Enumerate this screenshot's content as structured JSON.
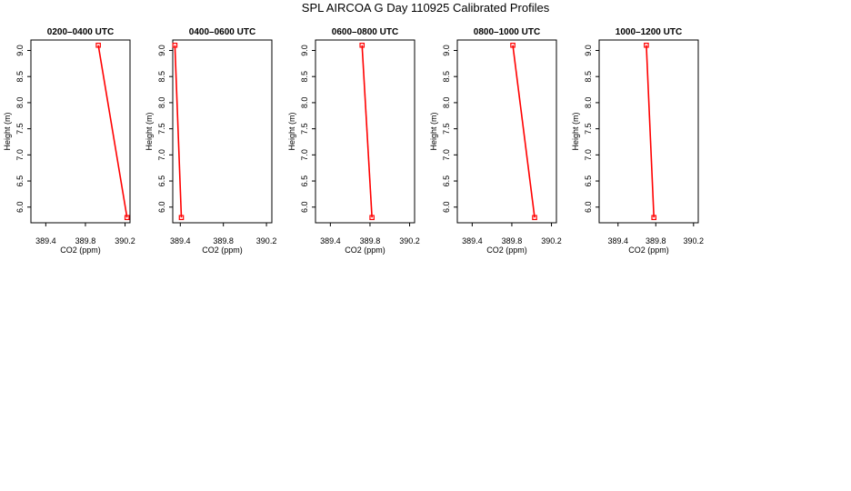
{
  "page": {
    "title": "SPL AIRCOA G  Day 110925  Calibrated Profiles"
  },
  "chart_data": [
    {
      "type": "line",
      "title": "0200–0400 UTC",
      "xlabel": "CO2 (ppm)",
      "ylabel": "Height (m)",
      "xlim": [
        389.25,
        390.25
      ],
      "ylim": [
        5.7,
        9.2
      ],
      "xticks": [
        "389.4",
        "389.8",
        "390.2"
      ],
      "yticks": [
        "6.0",
        "6.5",
        "7.0",
        "7.5",
        "8.0",
        "8.5",
        "9.0"
      ],
      "series": [
        {
          "x": [
            389.93,
            390.22
          ],
          "y": [
            9.1,
            5.8
          ]
        }
      ],
      "color": "#ff0000",
      "grid": false
    },
    {
      "type": "line",
      "title": "0400–0600 UTC",
      "xlabel": "CO2 (ppm)",
      "ylabel": "Height (m)",
      "xlim": [
        389.33,
        390.25
      ],
      "ylim": [
        5.7,
        9.2
      ],
      "xticks": [
        "389.4",
        "389.8",
        "390.2"
      ],
      "yticks": [
        "6.0",
        "6.5",
        "7.0",
        "7.5",
        "8.0",
        "8.5",
        "9.0"
      ],
      "series": [
        {
          "x": [
            389.35,
            389.41
          ],
          "y": [
            9.1,
            5.8
          ]
        }
      ],
      "color": "#ff0000",
      "grid": false
    },
    {
      "type": "line",
      "title": "0600–0800 UTC",
      "xlabel": "CO2 (ppm)",
      "ylabel": "Height (m)",
      "xlim": [
        389.25,
        390.25
      ],
      "ylim": [
        5.7,
        9.2
      ],
      "xticks": [
        "389.4",
        "389.8",
        "390.2"
      ],
      "yticks": [
        "6.0",
        "6.5",
        "7.0",
        "7.5",
        "8.0",
        "8.5",
        "9.0"
      ],
      "series": [
        {
          "x": [
            389.72,
            389.82
          ],
          "y": [
            9.1,
            5.8
          ]
        }
      ],
      "color": "#ff0000",
      "grid": false
    },
    {
      "type": "line",
      "title": "0800–1000 UTC",
      "xlabel": "CO2 (ppm)",
      "ylabel": "Height (m)",
      "xlim": [
        389.25,
        390.25
      ],
      "ylim": [
        5.7,
        9.2
      ],
      "xticks": [
        "389.4",
        "389.8",
        "390.2"
      ],
      "yticks": [
        "6.0",
        "6.5",
        "7.0",
        "7.5",
        "8.0",
        "8.5",
        "9.0"
      ],
      "series": [
        {
          "x": [
            389.81,
            390.03
          ],
          "y": [
            9.1,
            5.8
          ]
        }
      ],
      "color": "#ff0000",
      "grid": false
    },
    {
      "type": "line",
      "title": "1000–1200 UTC",
      "xlabel": "CO2 (ppm)",
      "ylabel": "Height (m)",
      "xlim": [
        389.2,
        390.25
      ],
      "ylim": [
        5.7,
        9.2
      ],
      "xticks": [
        "389.4",
        "389.8",
        "390.2"
      ],
      "yticks": [
        "6.0",
        "6.5",
        "7.0",
        "7.5",
        "8.0",
        "8.5",
        "9.0"
      ],
      "series": [
        {
          "x": [
            389.7,
            389.78
          ],
          "y": [
            9.1,
            5.8
          ]
        }
      ],
      "color": "#ff0000",
      "grid": false
    }
  ]
}
